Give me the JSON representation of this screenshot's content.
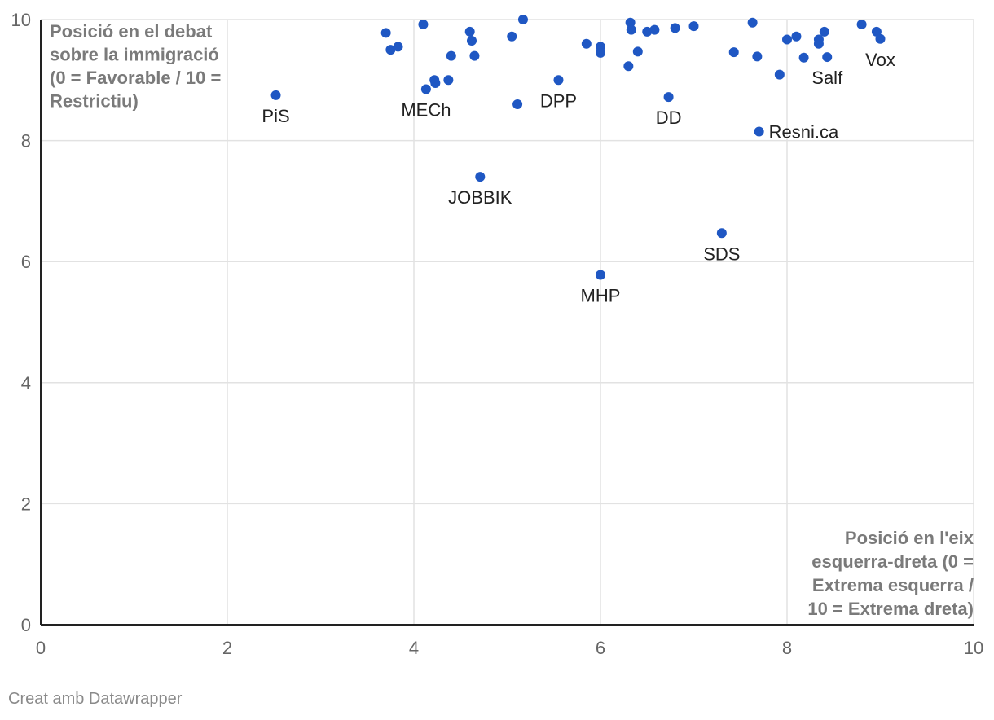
{
  "footer": {
    "credit": "Creat amb Datawrapper"
  },
  "chart_data": {
    "type": "scatter",
    "title": "",
    "ylabel_lines": [
      "Posició en el debat",
      "sobre la immigració",
      "(0 = Favorable / 10 =",
      "Restrictiu)"
    ],
    "xlabel_lines": [
      "Posició en l'eix",
      "esquerra-dreta (0 =",
      "Extrema esquerra /",
      "10 = Extrema dreta)"
    ],
    "xlim": [
      0,
      10
    ],
    "ylim": [
      0,
      10
    ],
    "x_ticks": [
      "0",
      "2",
      "4",
      "6",
      "8",
      "10"
    ],
    "y_ticks": [
      "0",
      "2",
      "4",
      "6",
      "8",
      "10"
    ],
    "grid": true,
    "point_color": "#1f57c3",
    "points": [
      {
        "x": 2.52,
        "y": 8.75,
        "label": "PiS"
      },
      {
        "x": 3.7,
        "y": 9.78
      },
      {
        "x": 3.75,
        "y": 9.5
      },
      {
        "x": 3.83,
        "y": 9.55
      },
      {
        "x": 4.1,
        "y": 9.92
      },
      {
        "x": 4.13,
        "y": 8.85,
        "label": "MECh"
      },
      {
        "x": 4.22,
        "y": 9.0
      },
      {
        "x": 4.23,
        "y": 8.95
      },
      {
        "x": 4.37,
        "y": 9.0
      },
      {
        "x": 4.4,
        "y": 9.4
      },
      {
        "x": 4.6,
        "y": 9.8
      },
      {
        "x": 4.62,
        "y": 9.65
      },
      {
        "x": 4.65,
        "y": 9.4
      },
      {
        "x": 4.71,
        "y": 7.4,
        "label": "JOBBIK"
      },
      {
        "x": 5.05,
        "y": 9.72
      },
      {
        "x": 5.11,
        "y": 8.6
      },
      {
        "x": 5.17,
        "y": 10.0
      },
      {
        "x": 5.55,
        "y": 9.0,
        "label": "DPP"
      },
      {
        "x": 5.85,
        "y": 9.6
      },
      {
        "x": 6.0,
        "y": 9.55
      },
      {
        "x": 6.0,
        "y": 9.45
      },
      {
        "x": 6.0,
        "y": 5.78,
        "label": "MHP"
      },
      {
        "x": 6.3,
        "y": 9.23
      },
      {
        "x": 6.32,
        "y": 9.95
      },
      {
        "x": 6.33,
        "y": 9.83
      },
      {
        "x": 6.4,
        "y": 9.47
      },
      {
        "x": 6.5,
        "y": 9.8
      },
      {
        "x": 6.58,
        "y": 9.83
      },
      {
        "x": 6.73,
        "y": 8.72,
        "label": "DD"
      },
      {
        "x": 6.8,
        "y": 9.86
      },
      {
        "x": 7.0,
        "y": 9.89
      },
      {
        "x": 7.3,
        "y": 6.47,
        "label": "SDS"
      },
      {
        "x": 7.43,
        "y": 9.46
      },
      {
        "x": 7.63,
        "y": 9.95
      },
      {
        "x": 7.68,
        "y": 9.39
      },
      {
        "x": 7.7,
        "y": 8.15,
        "label": "Resni.ca"
      },
      {
        "x": 7.92,
        "y": 9.09
      },
      {
        "x": 8.0,
        "y": 9.67
      },
      {
        "x": 8.1,
        "y": 9.72
      },
      {
        "x": 8.18,
        "y": 9.37
      },
      {
        "x": 8.34,
        "y": 9.67
      },
      {
        "x": 8.34,
        "y": 9.6
      },
      {
        "x": 8.4,
        "y": 9.8
      },
      {
        "x": 8.43,
        "y": 9.38,
        "label": "Salf"
      },
      {
        "x": 8.8,
        "y": 9.92
      },
      {
        "x": 8.96,
        "y": 9.8
      },
      {
        "x": 9.0,
        "y": 9.68,
        "label": "Vox"
      }
    ]
  }
}
